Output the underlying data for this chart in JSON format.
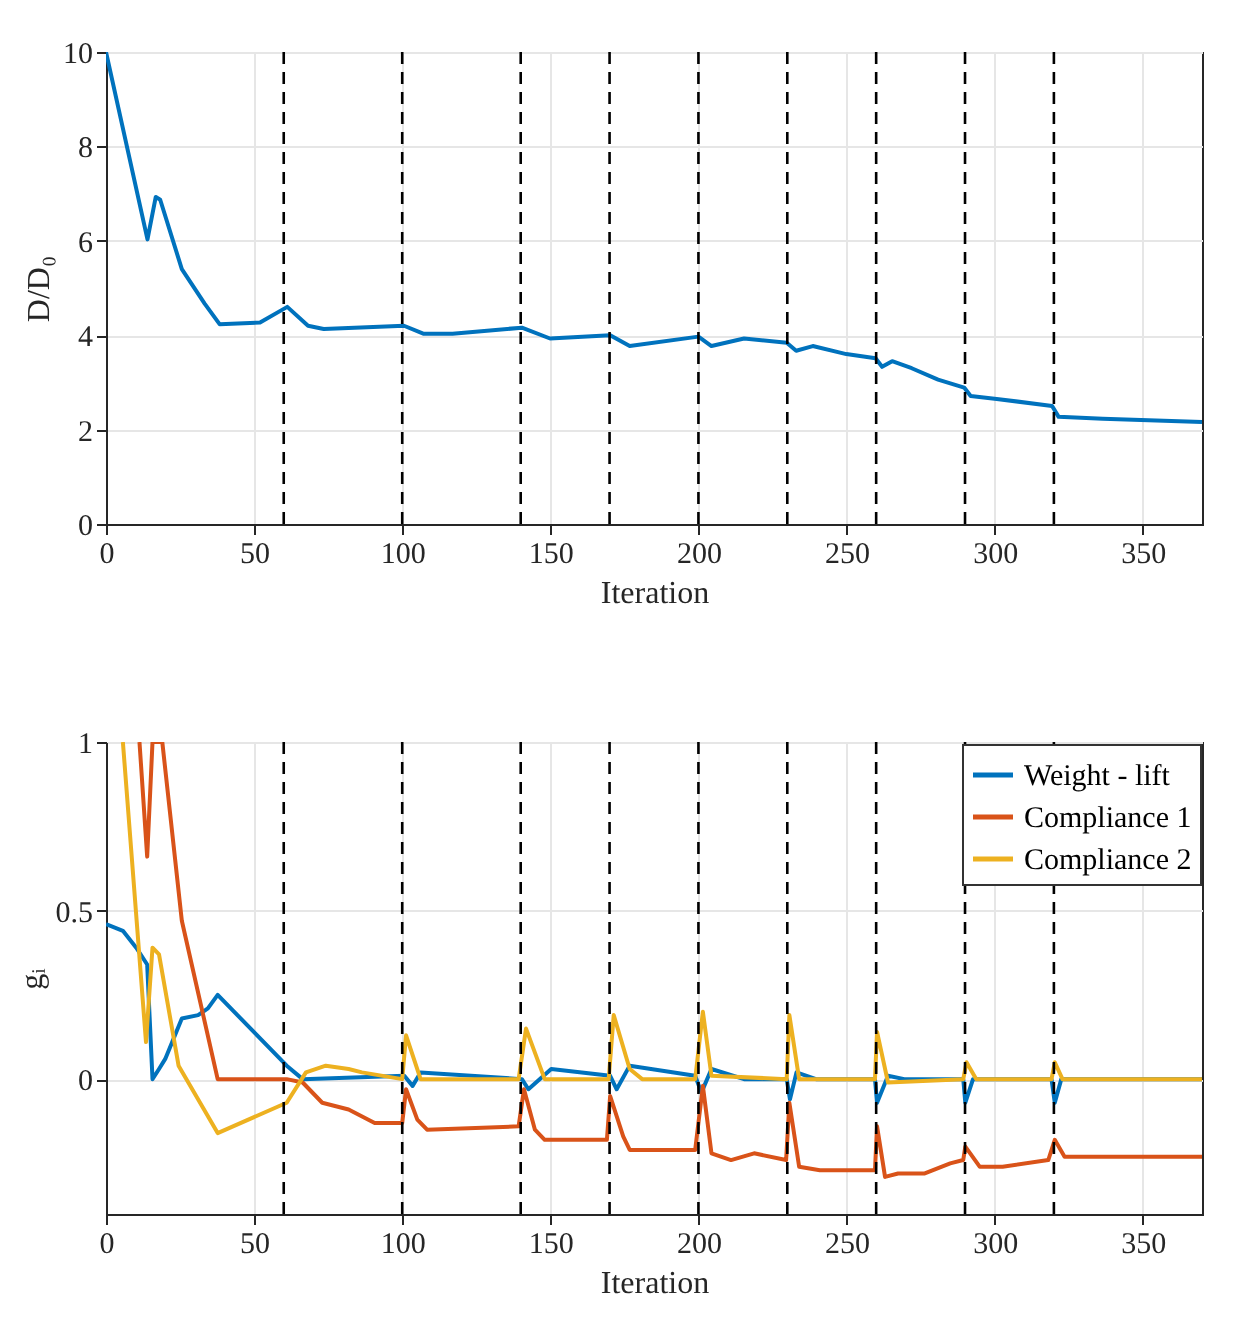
{
  "chart_data": [
    {
      "type": "line",
      "xlabel": "Iteration",
      "ylabel": "D/D₀",
      "xlim": [
        0,
        370
      ],
      "xticks": [
        0,
        50,
        100,
        150,
        200,
        250,
        300,
        350
      ],
      "ylim": [
        0,
        10
      ],
      "yticks": [
        0,
        2,
        4,
        6,
        8,
        10
      ],
      "grid": true,
      "series": [
        {
          "color": "#0072bd",
          "x": [
            0,
            14,
            16.8,
            18.3,
            25.6,
            33.3,
            38.4,
            52,
            61.2,
            68.2,
            73.5,
            100.6,
            107.3,
            117,
            140.4,
            149.9,
            170.2,
            176.8,
            200,
            204.4,
            215.4,
            229.8,
            233,
            238.6,
            249.9,
            259.8,
            262,
            265.4,
            272,
            280.9,
            289.7,
            291.9,
            300.7,
            319.4,
            321.6,
            336.5,
            370
          ],
          "values": [
            10,
            6.03,
            6.93,
            6.87,
            5.4,
            4.67,
            4.23,
            4.27,
            4.6,
            4.2,
            4.13,
            4.2,
            4.03,
            4.03,
            4.16,
            3.93,
            4.0,
            3.77,
            3.97,
            3.77,
            3.93,
            3.84,
            3.67,
            3.77,
            3.6,
            3.51,
            3.33,
            3.45,
            3.3,
            3.06,
            2.89,
            2.71,
            2.65,
            2.5,
            2.27,
            2.23,
            2.16
          ]
        }
      ],
      "ref_lines": [
        {
          "axis": "x",
          "value": 60,
          "color": "#000000",
          "line_style": "dashed"
        },
        {
          "axis": "x",
          "value": 100,
          "color": "#000000",
          "line_style": "dashed"
        },
        {
          "axis": "x",
          "value": 140,
          "color": "#000000",
          "line_style": "dashed"
        },
        {
          "axis": "x",
          "value": 170,
          "color": "#000000",
          "line_style": "dashed"
        },
        {
          "axis": "x",
          "value": 200,
          "color": "#000000",
          "line_style": "dashed"
        },
        {
          "axis": "x",
          "value": 230,
          "color": "#000000",
          "line_style": "dashed"
        },
        {
          "axis": "x",
          "value": 260,
          "color": "#000000",
          "line_style": "dashed"
        },
        {
          "axis": "x",
          "value": 290,
          "color": "#000000",
          "line_style": "dashed"
        },
        {
          "axis": "x",
          "value": 320,
          "color": "#000000",
          "line_style": "dashed"
        }
      ]
    },
    {
      "type": "line",
      "xlabel": "Iteration",
      "ylabel": "gᵢ",
      "xlim": [
        0,
        370
      ],
      "xticks": [
        0,
        50,
        100,
        150,
        200,
        250,
        300,
        350
      ],
      "ylim": [
        -0.4,
        1
      ],
      "yticks": [
        0,
        0.5,
        1
      ],
      "grid": true,
      "legend": "top right",
      "series": [
        {
          "name": "Weight - lift",
          "color": "#0072bd",
          "x": [
            0,
            5.7,
            10.2,
            13.9,
            15.7,
            17.9,
            20,
            25.6,
            31.1,
            34.4,
            37.7,
            61,
            66.4,
            100.7,
            103.5,
            106.2,
            140.4,
            142.6,
            150.3,
            170.2,
            172.4,
            176.8,
            198.9,
            201,
            204.4,
            215.4,
            229.8,
            230.9,
            233.1,
            239.7,
            259.6,
            260.3,
            264,
            269.5,
            289.4,
            290.1,
            292.7,
            319.2,
            320.3,
            322.5,
            370
          ],
          "values": [
            0.46,
            0.44,
            0.39,
            0.34,
            0,
            0.03,
            0.06,
            0.18,
            0.19,
            0.21,
            0.25,
            0.04,
            0,
            0.01,
            -0.02,
            0.02,
            0,
            -0.03,
            0.03,
            0.01,
            -0.03,
            0.04,
            0.01,
            -0.04,
            0.03,
            0,
            0,
            -0.06,
            0.02,
            0,
            0,
            -0.07,
            0.01,
            0,
            0,
            -0.07,
            0,
            0,
            -0.07,
            0,
            0
          ]
        },
        {
          "name": "Compliance 1",
          "color": "#d95319",
          "x": [
            11.3,
            13.9,
            15.7,
            19,
            25.6,
            37.7,
            61,
            66.4,
            73,
            81.9,
            90.7,
            100,
            101.3,
            105.1,
            108.4,
            139.3,
            141.1,
            144.8,
            148.1,
            169.1,
            170.2,
            174.6,
            176.8,
            198.9,
            201.5,
            204.4,
            211,
            218.8,
            229.6,
            230.7,
            234,
            241,
            259.6,
            260.3,
            263,
            267.4,
            276.2,
            285,
            289.4,
            290.1,
            295,
            302.7,
            318.1,
            320.3,
            323.6,
            370
          ],
          "values": [
            1,
            0.66,
            1,
            1,
            0.47,
            0,
            0,
            -0.01,
            -0.07,
            -0.09,
            -0.13,
            -0.13,
            -0.03,
            -0.12,
            -0.15,
            -0.14,
            -0.03,
            -0.15,
            -0.18,
            -0.18,
            -0.05,
            -0.17,
            -0.21,
            -0.21,
            -0.02,
            -0.22,
            -0.24,
            -0.22,
            -0.24,
            -0.07,
            -0.26,
            -0.27,
            -0.27,
            -0.14,
            -0.29,
            -0.28,
            -0.28,
            -0.25,
            -0.24,
            -0.2,
            -0.26,
            -0.26,
            -0.24,
            -0.18,
            -0.23,
            -0.23
          ]
        },
        {
          "name": "Compliance 2",
          "color": "#edb120",
          "x": [
            5.7,
            13.5,
            15.7,
            17.9,
            24.5,
            37.7,
            61,
            67.5,
            74.2,
            81.9,
            86.4,
            100,
            101.3,
            106.2,
            139.3,
            141.8,
            148.1,
            169.7,
            171.4,
            176.8,
            181,
            198.9,
            201.5,
            204.4,
            229.8,
            230.7,
            234,
            259.6,
            260.3,
            264,
            289.4,
            290.5,
            293.8,
            319.2,
            320.3,
            322.9,
            370
          ],
          "values": [
            1,
            0.11,
            0.39,
            0.37,
            0.04,
            -0.16,
            -0.07,
            0.02,
            0.04,
            0.03,
            0.02,
            0,
            0.13,
            0,
            0,
            0.15,
            0,
            0,
            0.19,
            0.03,
            0,
            0,
            0.2,
            0.01,
            0,
            0.19,
            0,
            0,
            0.14,
            -0.01,
            0,
            0.05,
            0,
            0,
            0.05,
            0,
            0
          ]
        }
      ],
      "ref_lines": [
        {
          "axis": "x",
          "value": 60,
          "color": "#000000",
          "line_style": "dashed"
        },
        {
          "axis": "x",
          "value": 100,
          "color": "#000000",
          "line_style": "dashed"
        },
        {
          "axis": "x",
          "value": 140,
          "color": "#000000",
          "line_style": "dashed"
        },
        {
          "axis": "x",
          "value": 170,
          "color": "#000000",
          "line_style": "dashed"
        },
        {
          "axis": "x",
          "value": 200,
          "color": "#000000",
          "line_style": "dashed"
        },
        {
          "axis": "x",
          "value": 230,
          "color": "#000000",
          "line_style": "dashed"
        },
        {
          "axis": "x",
          "value": 260,
          "color": "#000000",
          "line_style": "dashed"
        },
        {
          "axis": "x",
          "value": 290,
          "color": "#000000",
          "line_style": "dashed"
        },
        {
          "axis": "x",
          "value": 320,
          "color": "#000000",
          "line_style": "dashed"
        }
      ]
    }
  ]
}
